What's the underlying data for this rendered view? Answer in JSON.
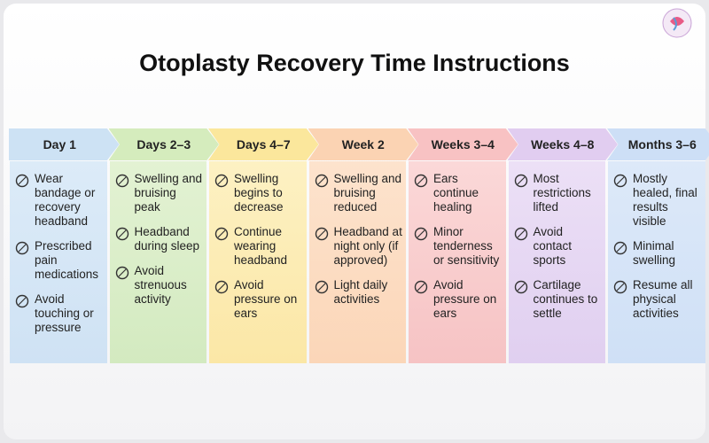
{
  "title": "Otoplasty Recovery Time Instructions",
  "columns": [
    {
      "label": "Day 1",
      "items": [
        "Wear bandage or recovery headband",
        "Prescribed pain medications",
        "Avoid touching or pressure"
      ]
    },
    {
      "label": "Days 2–3",
      "items": [
        "Swelling and bruising peak",
        "Headband during sleep",
        "Avoid strenuous activity"
      ]
    },
    {
      "label": "Days 4–7",
      "items": [
        "Swelling begins to decrease",
        "Continue wearing headband",
        "Avoid pressure on ears"
      ]
    },
    {
      "label": "Week 2",
      "items": [
        "Swelling and bruising reduced",
        "Headband at night only (if approved)",
        "Light daily activities"
      ]
    },
    {
      "label": "Weeks 3–4",
      "items": [
        "Ears continue healing",
        "Minor tenderness or sensitivity",
        "Avoid pressure on ears"
      ]
    },
    {
      "label": "Weeks 4–8",
      "items": [
        "Most restrictions lifted",
        "Avoid contact sports",
        "Cartilage continues to settle"
      ]
    },
    {
      "label": "Months 3–6",
      "items": [
        "Mostly healed, final results visible",
        "Minimal swelling",
        "Resume all physical activities"
      ]
    }
  ]
}
